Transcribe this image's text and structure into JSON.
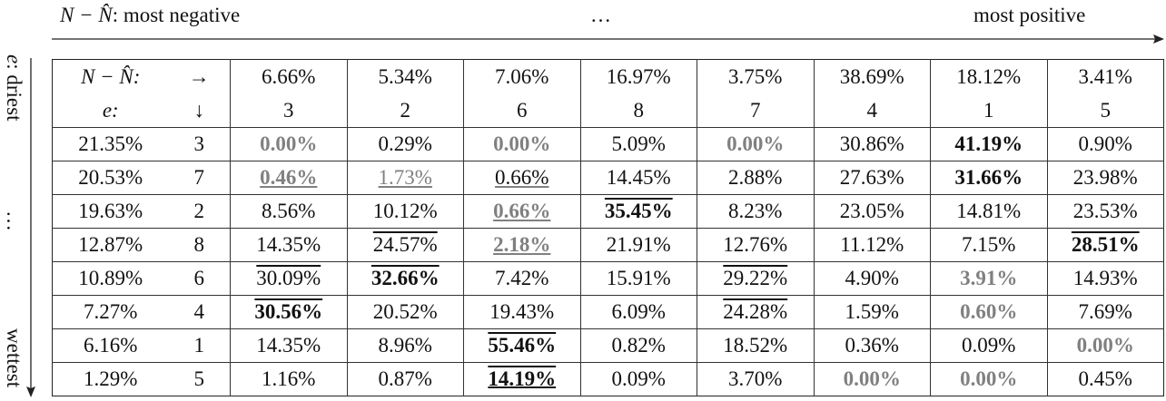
{
  "header": {
    "left_math": "N − N̂",
    "left_text": ": most negative",
    "middle": "…",
    "right": "most positive"
  },
  "side": {
    "top_math": "e",
    "top_text": ": driest",
    "middle": "…",
    "bottom": "wettest"
  },
  "table": {
    "corner": [
      [
        "N − N̂:",
        "→"
      ],
      [
        "e:",
        "↓"
      ]
    ],
    "col_pct": [
      "6.66%",
      "5.34%",
      "7.06%",
      "16.97%",
      "3.75%",
      "38.69%",
      "18.12%",
      "3.41%"
    ],
    "col_idx": [
      "3",
      "2",
      "6",
      "8",
      "7",
      "4",
      "1",
      "5"
    ],
    "rows": [
      {
        "pct": "21.35%",
        "idx": "3",
        "cells": [
          "0.00%",
          "0.29%",
          "0.00%",
          "5.09%",
          "0.00%",
          "30.86%",
          "41.19%",
          "0.90%"
        ]
      },
      {
        "pct": "20.53%",
        "idx": "7",
        "cells": [
          "0.46%",
          "1.73%",
          "0.66%",
          "14.45%",
          "2.88%",
          "27.63%",
          "31.66%",
          "23.98%"
        ]
      },
      {
        "pct": "19.63%",
        "idx": "2",
        "cells": [
          "8.56%",
          "10.12%",
          "0.66%",
          "35.45%",
          "8.23%",
          "23.05%",
          "14.81%",
          "23.53%"
        ]
      },
      {
        "pct": "12.87%",
        "idx": "8",
        "cells": [
          "14.35%",
          "24.57%",
          "2.18%",
          "21.91%",
          "12.76%",
          "11.12%",
          "7.15%",
          "28.51%"
        ]
      },
      {
        "pct": "10.89%",
        "idx": "6",
        "cells": [
          "30.09%",
          "32.66%",
          "7.42%",
          "15.91%",
          "29.22%",
          "4.90%",
          "3.91%",
          "14.93%"
        ]
      },
      {
        "pct": "7.27%",
        "idx": "4",
        "cells": [
          "30.56%",
          "20.52%",
          "19.43%",
          "6.09%",
          "24.28%",
          "1.59%",
          "0.60%",
          "7.69%"
        ]
      },
      {
        "pct": "6.16%",
        "idx": "1",
        "cells": [
          "14.35%",
          "8.96%",
          "55.46%",
          "0.82%",
          "18.52%",
          "0.36%",
          "0.09%",
          "0.00%"
        ]
      },
      {
        "pct": "1.29%",
        "idx": "5",
        "cells": [
          "1.16%",
          "0.87%",
          "14.19%",
          "0.09%",
          "3.70%",
          "0.00%",
          "0.00%",
          "0.45%"
        ]
      }
    ]
  }
}
